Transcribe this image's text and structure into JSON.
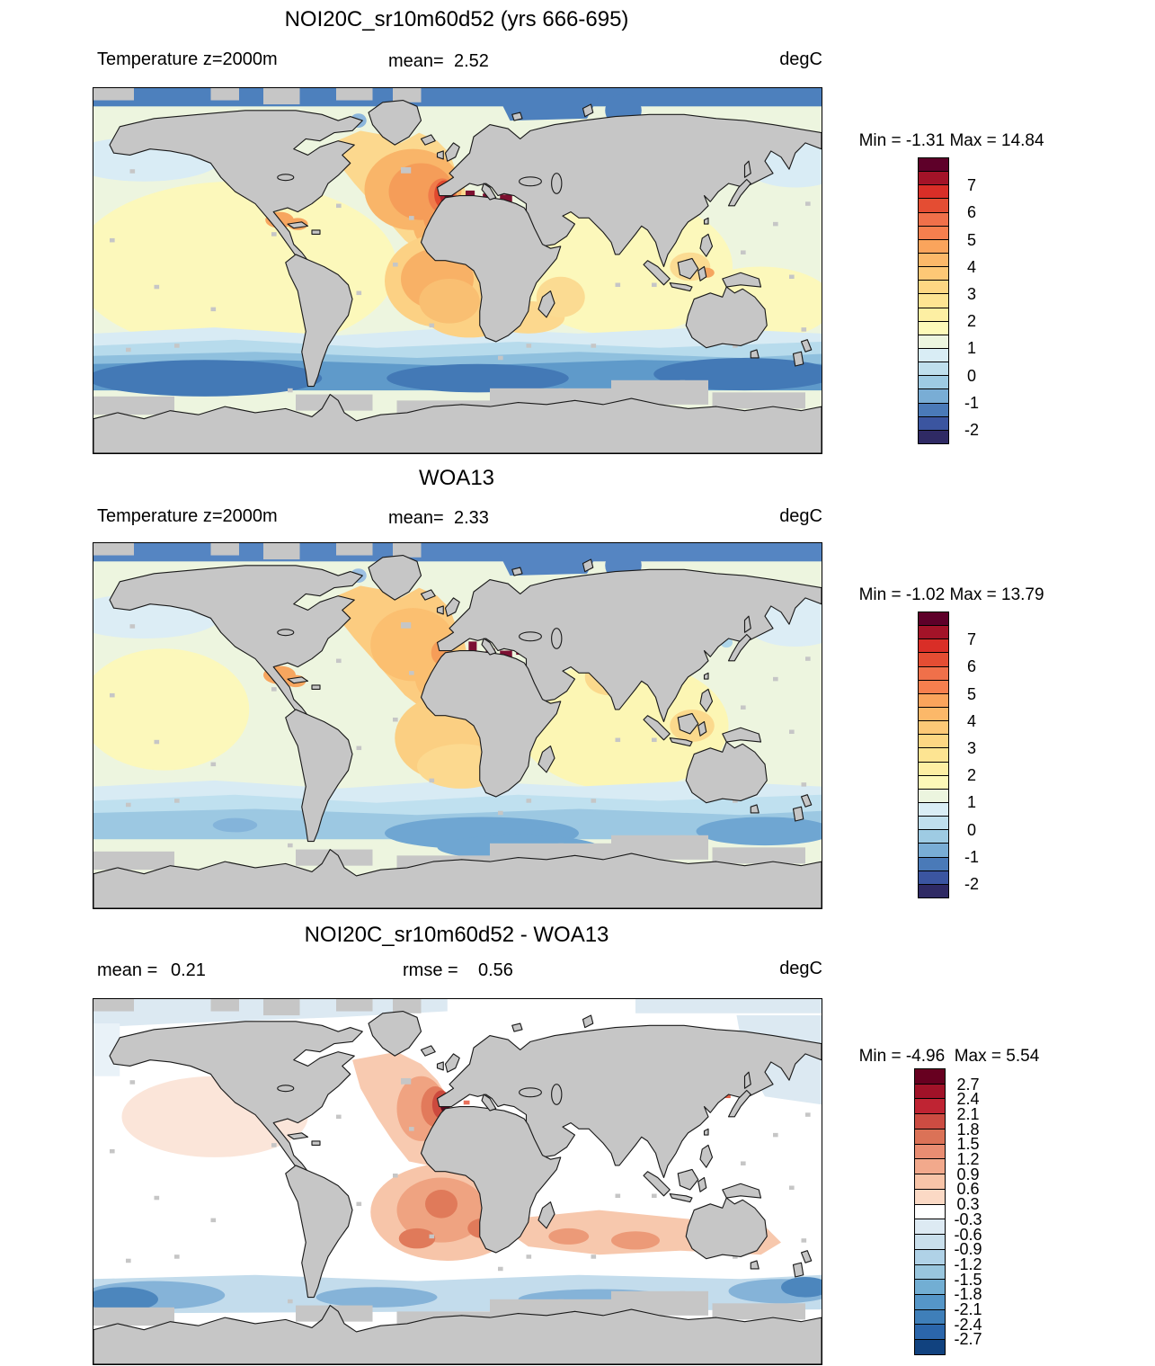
{
  "chart_data": [
    {
      "type": "heatmap",
      "title": "NOI20C_sr10m60d52 (yrs 666-695)",
      "field_label": "Temperature z=2000m",
      "stats": {
        "mean_label": "mean=",
        "mean": "2.52"
      },
      "units": "degC",
      "min_label": "Min = ",
      "min": "-1.31",
      "max_label": "Max = ",
      "max": "14.84",
      "colorbar": {
        "orientation": "vertical",
        "cell_value_step_degC": 0.5,
        "tick_labels": [
          "7",
          "6",
          "5",
          "4",
          "3",
          "2",
          "1",
          "0",
          "-1",
          "-2"
        ],
        "first_tick_boundary": 2,
        "tick_step_cells": 2,
        "cells": [
          "#5e0029",
          "#a31328",
          "#d92e27",
          "#e44d33",
          "#f0704a",
          "#f67f4e",
          "#faa45c",
          "#fcb869",
          "#fdc876",
          "#fdd783",
          "#fde492",
          "#fdefa3",
          "#fdf9b8",
          "#ecf5df",
          "#d9edf5",
          "#bfdfed",
          "#9ecbe3",
          "#79add5",
          "#4a7ab8",
          "#3b55a0",
          "#2f2a64"
        ]
      }
    },
    {
      "type": "heatmap",
      "title": "WOA13",
      "field_label": "Temperature z=2000m",
      "stats": {
        "mean_label": "mean=",
        "mean": "2.33"
      },
      "units": "degC",
      "min_label": "Min = ",
      "min": "-1.02",
      "max_label": "Max = ",
      "max": "13.79",
      "colorbar": {
        "orientation": "vertical",
        "cell_value_step_degC": 0.5,
        "tick_labels": [
          "7",
          "6",
          "5",
          "4",
          "3",
          "2",
          "1",
          "0",
          "-1",
          "-2"
        ],
        "first_tick_boundary": 2,
        "tick_step_cells": 2,
        "cells": [
          "#5e0029",
          "#a31328",
          "#d92e27",
          "#e44d33",
          "#f0704a",
          "#f67f4e",
          "#faa45c",
          "#fcb869",
          "#fdc876",
          "#fdd783",
          "#fde492",
          "#fdefa3",
          "#fdf9b8",
          "#ecf5df",
          "#d9edf5",
          "#bfdfed",
          "#9ecbe3",
          "#79add5",
          "#4a7ab8",
          "#3b55a0",
          "#2f2a64"
        ]
      }
    },
    {
      "type": "heatmap",
      "title": "NOI20C_sr10m60d52 - WOA13",
      "stats": {
        "mean_label": "mean = ",
        "mean": "0.21",
        "rmse_label": "rmse = ",
        "rmse": "0.56"
      },
      "units": "degC",
      "min_label": "Min = ",
      "min": "-4.96",
      "max_label": "Max = ",
      "max": "5.54",
      "colorbar": {
        "orientation": "vertical",
        "cell_value_step_degC": 0.3,
        "tick_labels": [
          "2.7",
          "2.4",
          "2.1",
          "1.8",
          "1.5",
          "1.2",
          "0.9",
          "0.6",
          "0.3",
          "-0.3",
          "-0.6",
          "-0.9",
          "-1.2",
          "-1.5",
          "-1.8",
          "-2.1",
          "-2.4",
          "-2.7"
        ],
        "first_tick_boundary": 1,
        "tick_step_cells": 1,
        "cells": [
          "#670020",
          "#a11228",
          "#bf2433",
          "#cc4c42",
          "#db7257",
          "#e98d72",
          "#f2a98c",
          "#f8c4a8",
          "#fbd9c5",
          "#ffffff",
          "#ddeaf3",
          "#c9dfec",
          "#b0d2e7",
          "#99c6de",
          "#72aed3",
          "#5596c8",
          "#3f7fb9",
          "#2b66ab",
          "#11427f"
        ]
      }
    }
  ]
}
